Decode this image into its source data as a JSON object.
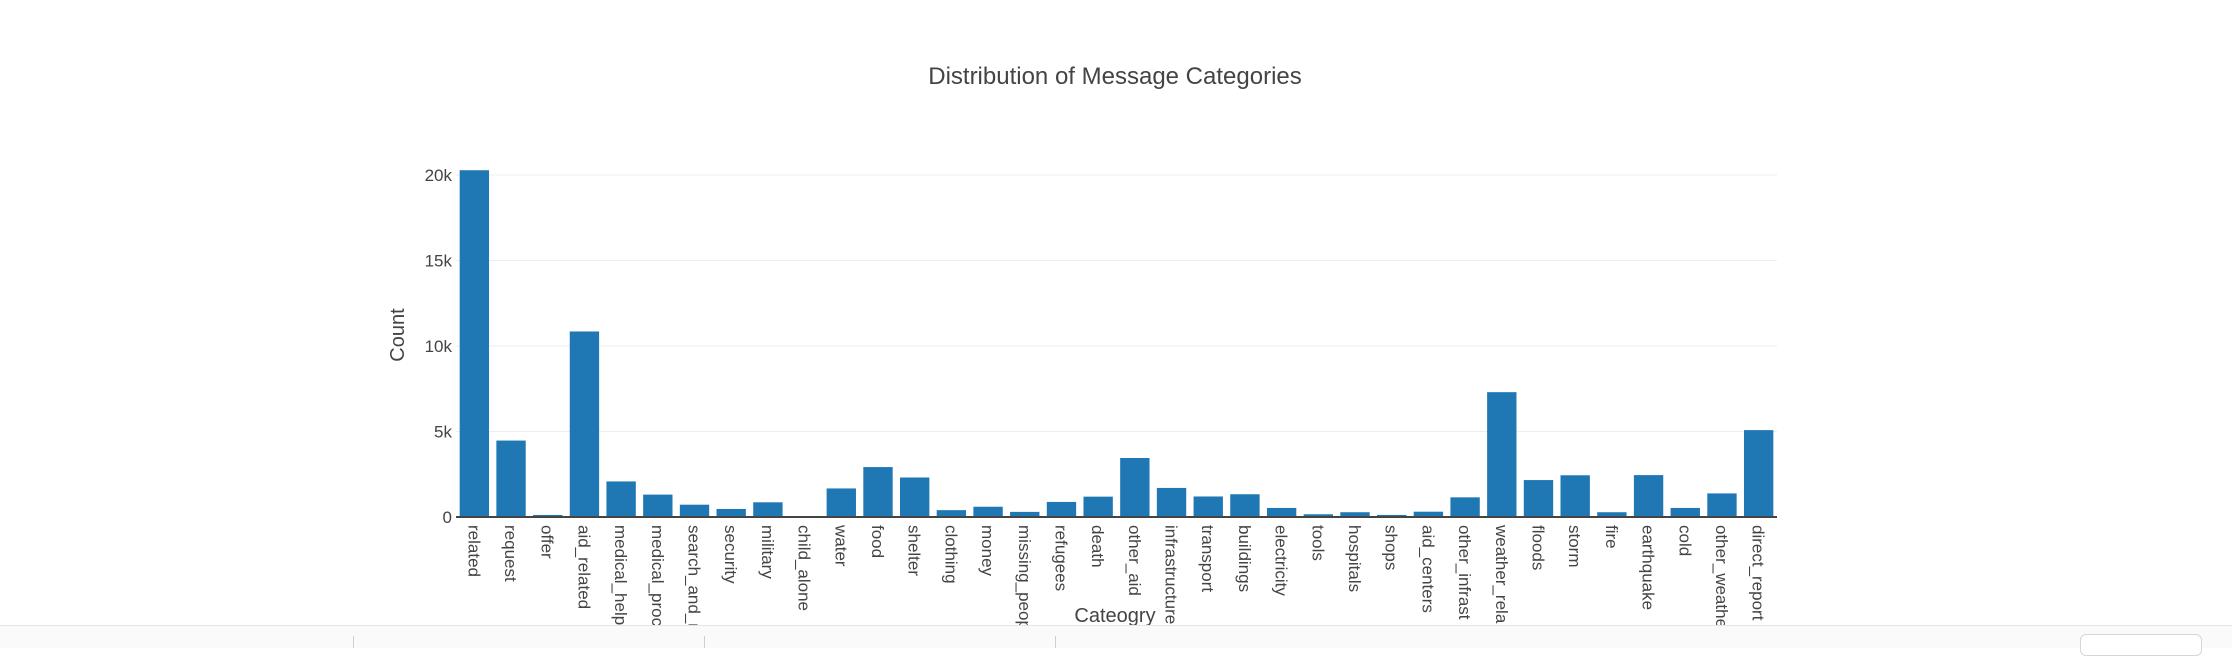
{
  "chart_data": {
    "type": "bar",
    "title": "Distribution of Message Categories",
    "xlabel": "Cateogry",
    "ylabel": "Count",
    "ylim": [
      0,
      20000
    ],
    "yticks": [
      {
        "value": 0,
        "label": "0"
      },
      {
        "value": 5000,
        "label": "5k"
      },
      {
        "value": 10000,
        "label": "10k"
      },
      {
        "value": 15000,
        "label": "15k"
      },
      {
        "value": 20000,
        "label": "20k"
      }
    ],
    "grid": true,
    "bar_color": "#1f77b4",
    "categories": [
      "related",
      "request",
      "offer",
      "aid_related",
      "medical_help",
      "medical_products",
      "search_and_rescue",
      "security",
      "military",
      "child_alone",
      "water",
      "food",
      "shelter",
      "clothing",
      "money",
      "missing_people",
      "refugees",
      "death",
      "other_aid",
      "infrastructure_related",
      "transport",
      "buildings",
      "electricity",
      "tools",
      "hospitals",
      "shops",
      "aid_centers",
      "other_infrastructure",
      "weather_related",
      "floods",
      "storm",
      "fire",
      "earthquake",
      "cold",
      "other_weather",
      "direct_report"
    ],
    "tick_labels": [
      "related",
      "request",
      "offer",
      "aid_related",
      "medical_help",
      "medical_proc",
      "search_and_r",
      "security",
      "military",
      "child_alone",
      "water",
      "food",
      "shelter",
      "clothing",
      "money",
      "missing_peop",
      "refugees",
      "death",
      "other_aid",
      "infrastructure",
      "transport",
      "buildings",
      "electricity",
      "tools",
      "hospitals",
      "shops",
      "aid_centers",
      "other_infrast",
      "weather_rela",
      "floods",
      "storm",
      "fire",
      "earthquake",
      "cold",
      "other_weathe",
      "direct_report"
    ],
    "values": [
      20280,
      4470,
      120,
      10850,
      2080,
      1310,
      720,
      470,
      860,
      0,
      1670,
      2920,
      2310,
      400,
      600,
      300,
      880,
      1190,
      3450,
      1700,
      1200,
      1330,
      530,
      160,
      280,
      120,
      310,
      1150,
      7300,
      2160,
      2440,
      280,
      2450,
      530,
      1380,
      5080
    ]
  }
}
